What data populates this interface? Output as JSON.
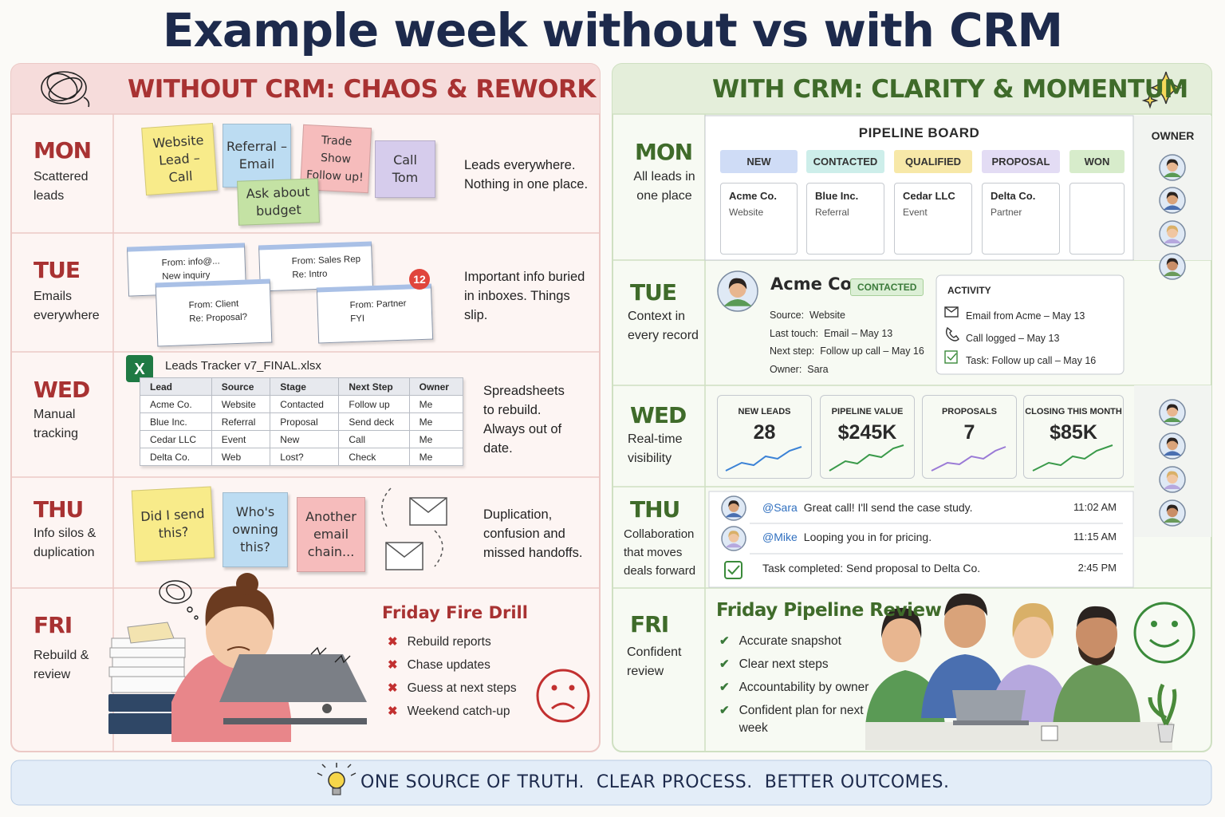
{
  "title": "Example week without vs with CRM",
  "without_crm": {
    "heading": "WITHOUT CRM: CHAOS & REWORK",
    "days": [
      {
        "day": "MON",
        "caption": "Scattered leads",
        "notes": [
          "Website Lead – Call",
          "Referral – Email",
          "Trade Show Follow up!",
          "Call Tom",
          "Ask about budget"
        ],
        "text": "Leads everywhere. Nothing in one place."
      },
      {
        "day": "TUE",
        "caption": "Emails everywhere",
        "emails": [
          {
            "from": "From: info@...",
            "subject": "New inquiry"
          },
          {
            "from": "From: Sales Rep",
            "subject": "Re: Intro"
          },
          {
            "from": "From: Client",
            "subject": "Re: Proposal?"
          },
          {
            "from": "From: Partner",
            "subject": "FYI"
          }
        ],
        "badge": "12",
        "text": "Important info buried in inboxes. Things slip."
      },
      {
        "day": "WED",
        "caption": "Manual tracking",
        "file": "Leads Tracker v7_FINAL.xlsx",
        "table": {
          "header": [
            "Lead",
            "Source",
            "Stage",
            "Next Step",
            "Owner"
          ],
          "rows": [
            [
              "Acme Co.",
              "Website",
              "Contacted",
              "Follow up",
              "Me"
            ],
            [
              "Blue Inc.",
              "Referral",
              "Proposal",
              "Send deck",
              "Me"
            ],
            [
              "Cedar LLC",
              "Event",
              "New",
              "Call",
              "Me"
            ],
            [
              "Delta Co.",
              "Web",
              "Lost?",
              "Check",
              "Me"
            ]
          ]
        },
        "text": "Spreadsheets to rebuild. Always out of date."
      },
      {
        "day": "THU",
        "caption": "Info silos & duplication",
        "notes": [
          "Did I send this?",
          "Who's owning this?",
          "Another email chain..."
        ],
        "text": "Duplication, confusion and missed handoffs."
      },
      {
        "day": "FRI",
        "caption": "Rebuild & review",
        "heading": "Friday Fire Drill",
        "items": [
          "Rebuild reports",
          "Chase updates",
          "Guess at next steps",
          "Weekend catch-up"
        ]
      }
    ]
  },
  "with_crm": {
    "heading": "WITH CRM: CLARITY & MOMENTUM",
    "owner_label": "OWNER",
    "days": [
      {
        "day": "MON",
        "caption": "All leads in one place",
        "board": {
          "title": "PIPELINE BOARD",
          "stages": [
            "NEW",
            "CONTACTED",
            "QUALIFIED",
            "PROPOSAL",
            "WON"
          ],
          "cards": [
            {
              "name": "Acme Co.",
              "source": "Website"
            },
            {
              "name": "Blue Inc.",
              "source": "Referral"
            },
            {
              "name": "Cedar LLC",
              "source": "Event"
            },
            {
              "name": "Delta Co.",
              "source": "Partner"
            }
          ]
        }
      },
      {
        "day": "TUE",
        "caption": "Context in every record",
        "record": {
          "name": "Acme Co.",
          "status": "CONTACTED",
          "details": [
            "Source:  Website",
            "Last touch:  Email – May 13",
            "Next step:  Follow up call – May 16",
            "Owner:  Sara"
          ],
          "activity_title": "ACTIVITY",
          "activity": [
            "Email from Acme – May 13",
            "Call logged – May 13",
            "Task: Follow up call – May 16"
          ]
        }
      },
      {
        "day": "WED",
        "caption": "Real-time visibility",
        "kpis": [
          {
            "label": "NEW LEADS",
            "value": "28"
          },
          {
            "label": "PIPELINE VALUE",
            "value": "$245K"
          },
          {
            "label": "PROPOSALS",
            "value": "7"
          },
          {
            "label": "CLOSING THIS MONTH",
            "value": "$85K"
          }
        ]
      },
      {
        "day": "THU",
        "caption": "Collaboration that moves deals forward",
        "messages": [
          {
            "mention": "@Sara",
            "text": "Great call! I'll send the case study.",
            "time": "11:02 AM"
          },
          {
            "mention": "@Mike",
            "text": "Looping you in for pricing.",
            "time": "11:15 AM"
          },
          {
            "text": "Task completed: Send proposal to Delta Co.",
            "time": "2:45 PM"
          }
        ]
      },
      {
        "day": "FRI",
        "caption": "Confident review",
        "heading": "Friday Pipeline Review",
        "items": [
          "Accurate snapshot",
          "Clear next steps",
          "Accountability by owner",
          "Confident plan for next week"
        ]
      }
    ]
  },
  "footer": "ONE SOURCE OF TRUTH.  CLEAR PROCESS.  BETTER OUTCOMES."
}
